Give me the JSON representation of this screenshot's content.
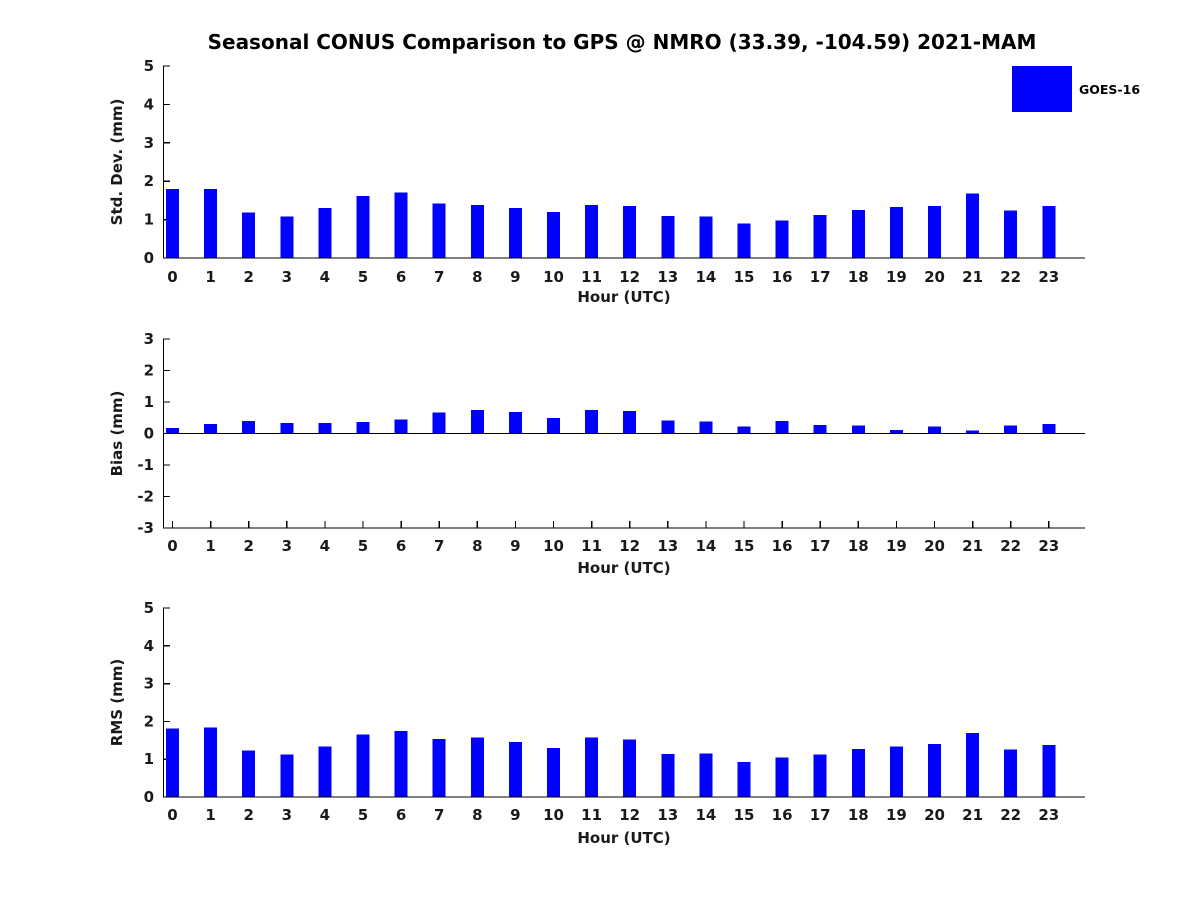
{
  "title": "Seasonal CONUS Comparison to GPS @ NMRO (33.39, -104.59) 2021-MAM",
  "legend": {
    "label": "GOES-16",
    "color": "#0000ff"
  },
  "chart_data": [
    {
      "type": "bar",
      "name": "std-dev",
      "ylabel": "Std. Dev. (mm)",
      "xlabel": "Hour (UTC)",
      "ylim": [
        0,
        5
      ],
      "yticks": [
        "0",
        "1",
        "2",
        "3",
        "4",
        "5"
      ],
      "grid": false,
      "legend_entry": "GOES-16",
      "color": "#0000ff",
      "categories": [
        "0",
        "1",
        "2",
        "3",
        "4",
        "5",
        "6",
        "7",
        "8",
        "9",
        "10",
        "11",
        "12",
        "13",
        "14",
        "15",
        "16",
        "17",
        "18",
        "19",
        "20",
        "21",
        "22",
        "23"
      ],
      "values": [
        1.8,
        1.8,
        1.18,
        1.08,
        1.3,
        1.62,
        1.7,
        1.42,
        1.38,
        1.3,
        1.2,
        1.38,
        1.36,
        1.1,
        1.08,
        0.9,
        0.98,
        1.12,
        1.25,
        1.33,
        1.36,
        1.68,
        1.24,
        1.36
      ]
    },
    {
      "type": "bar",
      "name": "bias",
      "ylabel": "Bias (mm)",
      "xlabel": "Hour (UTC)",
      "ylim": [
        -3,
        3
      ],
      "yticks": [
        "-3",
        "-2",
        "-1",
        "0",
        "1",
        "2",
        "3"
      ],
      "grid": false,
      "legend_entry": "GOES-16",
      "color": "#0000ff",
      "categories": [
        "0",
        "1",
        "2",
        "3",
        "4",
        "5",
        "6",
        "7",
        "8",
        "9",
        "10",
        "11",
        "12",
        "13",
        "14",
        "15",
        "16",
        "17",
        "18",
        "19",
        "20",
        "21",
        "22",
        "23"
      ],
      "values": [
        0.18,
        0.3,
        0.4,
        0.34,
        0.33,
        0.37,
        0.44,
        0.66,
        0.75,
        0.68,
        0.5,
        0.75,
        0.71,
        0.42,
        0.38,
        0.22,
        0.4,
        0.27,
        0.25,
        0.11,
        0.22,
        0.09,
        0.25,
        0.3
      ]
    },
    {
      "type": "bar",
      "name": "rms",
      "ylabel": "RMS (mm)",
      "xlabel": "Hour (UTC)",
      "ylim": [
        0,
        5
      ],
      "yticks": [
        "0",
        "1",
        "2",
        "3",
        "4",
        "5"
      ],
      "grid": false,
      "legend_entry": "GOES-16",
      "color": "#0000ff",
      "categories": [
        "0",
        "1",
        "2",
        "3",
        "4",
        "5",
        "6",
        "7",
        "8",
        "9",
        "10",
        "11",
        "12",
        "13",
        "14",
        "15",
        "16",
        "17",
        "18",
        "19",
        "20",
        "21",
        "22",
        "23"
      ],
      "values": [
        1.81,
        1.84,
        1.23,
        1.12,
        1.33,
        1.65,
        1.75,
        1.54,
        1.57,
        1.46,
        1.3,
        1.57,
        1.52,
        1.14,
        1.15,
        0.92,
        1.04,
        1.12,
        1.27,
        1.34,
        1.4,
        1.69,
        1.26,
        1.38
      ]
    }
  ]
}
